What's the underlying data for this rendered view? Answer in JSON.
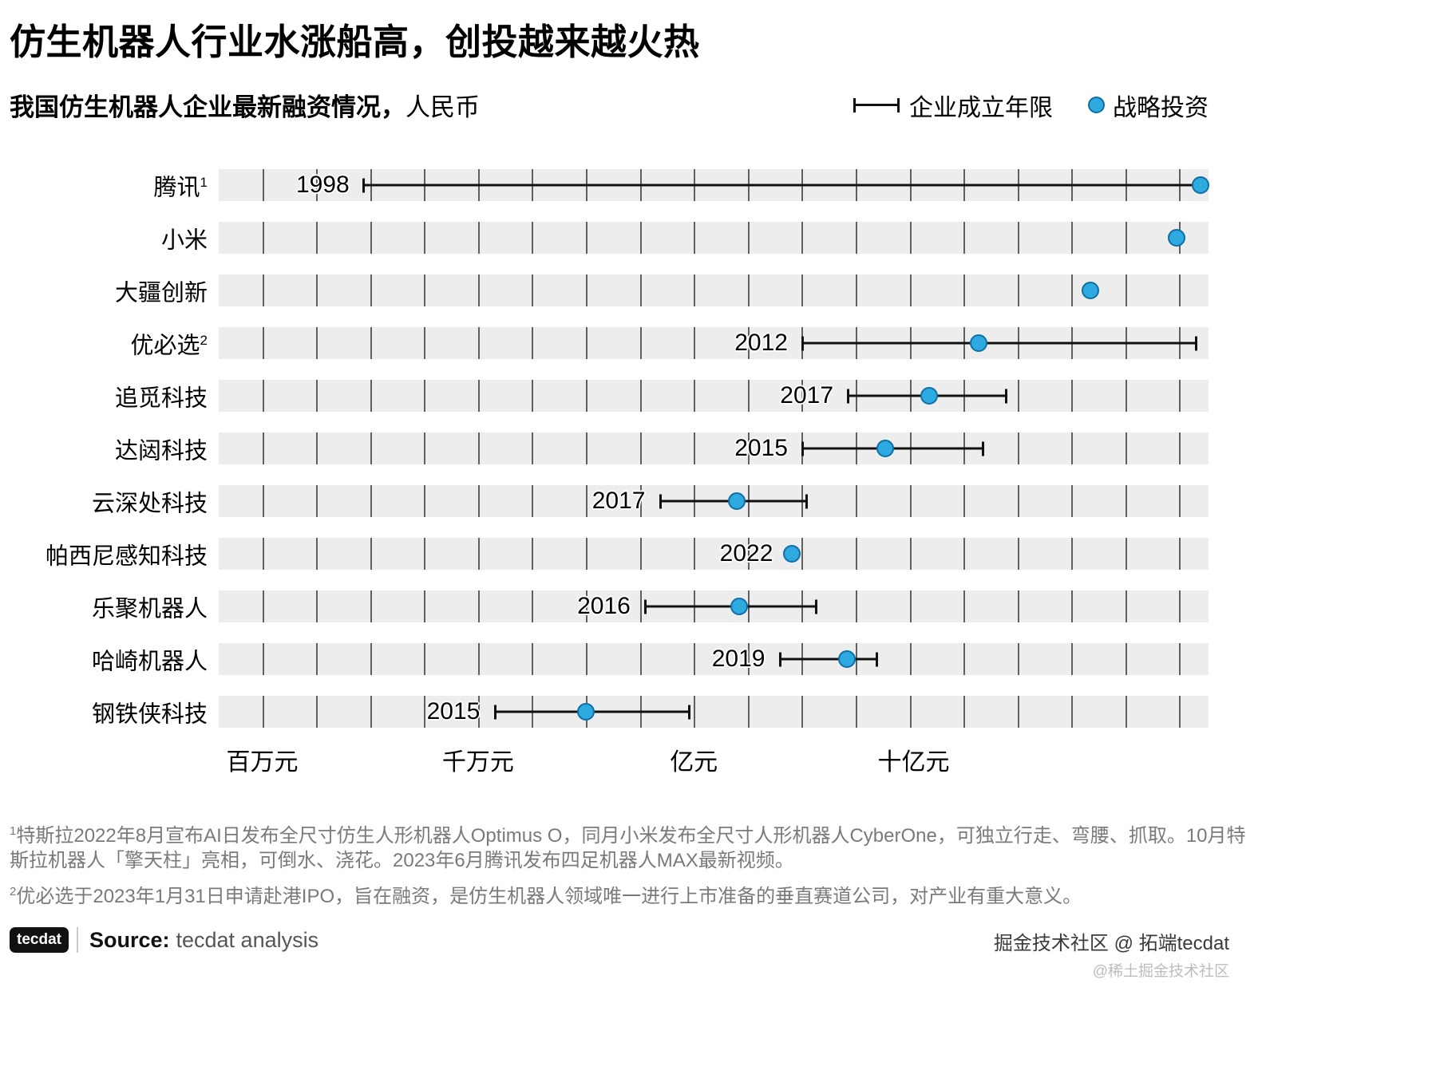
{
  "header": {
    "title": "仿生机器人行业水涨船高，创投越来越火热",
    "subtitle_bold": "我国仿生机器人企业最新融资情况，",
    "subtitle_light": "人民币",
    "legend": {
      "line_label": "企业成立年限",
      "dot_label": "战略投资"
    }
  },
  "chart_data": {
    "type": "dumbbell",
    "title": "仿生机器人行业水涨船高，创投越来越火热",
    "subtitle": "我国仿生机器人企业最新融资情况，人民币",
    "x_scale": "log10, 人民币元",
    "x_ticks": [
      {
        "label": "百万元",
        "pct": 4.4
      },
      {
        "label": "千万元",
        "pct": 26.2
      },
      {
        "label": "亿元",
        "pct": 48.0
      },
      {
        "label": "十亿元",
        "pct": 70.2
      }
    ],
    "gridlines_pct": [
      4.4,
      9.85,
      15.3,
      20.75,
      26.2,
      31.65,
      37.1,
      42.55,
      48.0,
      53.45,
      58.9,
      64.35,
      69.8,
      75.25,
      80.7,
      86.15,
      91.6,
      97.05
    ],
    "rows": [
      {
        "company": "腾讯",
        "footnote_mark": "1",
        "year": "1998",
        "line_left_pct": 14.5,
        "line_width_pct": 84.5,
        "year_right_pct": 86.8,
        "dot_pct": 99.2,
        "amount_est_yuan": 22000000000
      },
      {
        "company": "小米",
        "footnote_mark": "",
        "year": "",
        "line_left_pct": null,
        "line_width_pct": null,
        "year_right_pct": null,
        "dot_pct": 96.8,
        "amount_est_yuan": 17000000000
      },
      {
        "company": "大疆创新",
        "footnote_mark": "",
        "year": "",
        "line_left_pct": null,
        "line_width_pct": null,
        "year_right_pct": null,
        "dot_pct": 88.1,
        "amount_est_yuan": 7000000000
      },
      {
        "company": "优必选",
        "footnote_mark": "2",
        "year": "2012",
        "line_left_pct": 58.9,
        "line_width_pct": 40.0,
        "year_right_pct": 42.5,
        "dot_pct": 76.8,
        "amount_est_yuan": 2100000000
      },
      {
        "company": "追觅科技",
        "footnote_mark": "",
        "year": "2017",
        "line_left_pct": 63.5,
        "line_width_pct": 16.2,
        "year_right_pct": 37.9,
        "dot_pct": 71.8,
        "amount_est_yuan": 1200000000
      },
      {
        "company": "达闼科技",
        "footnote_mark": "",
        "year": "2015",
        "line_left_pct": 58.9,
        "line_width_pct": 18.4,
        "year_right_pct": 42.5,
        "dot_pct": 67.3,
        "amount_est_yuan": 780000000
      },
      {
        "company": "云深处科技",
        "footnote_mark": "",
        "year": "2017",
        "line_left_pct": 44.5,
        "line_width_pct": 15.0,
        "year_right_pct": 56.9,
        "dot_pct": 52.3,
        "amount_est_yuan": 160000000
      },
      {
        "company": "帕西尼感知科技",
        "footnote_mark": "",
        "year": "2022",
        "line_left_pct": null,
        "line_width_pct": null,
        "year_right_pct": 44.0,
        "dot_pct": 57.9,
        "amount_est_yuan": 280000000
      },
      {
        "company": "乐聚机器人",
        "footnote_mark": "",
        "year": "2016",
        "line_left_pct": 43.0,
        "line_width_pct": 17.5,
        "year_right_pct": 58.4,
        "dot_pct": 52.6,
        "amount_est_yuan": 160000000
      },
      {
        "company": "哈崎机器人",
        "footnote_mark": "",
        "year": "2019",
        "line_left_pct": 56.6,
        "line_width_pct": 10.0,
        "year_right_pct": 44.8,
        "dot_pct": 63.5,
        "amount_est_yuan": 510000000
      },
      {
        "company": "钢铁侠科技",
        "footnote_mark": "",
        "year": "2015",
        "line_left_pct": 27.8,
        "line_width_pct": 19.9,
        "year_right_pct": 73.6,
        "dot_pct": 37.1,
        "amount_est_yuan": 32000000
      }
    ]
  },
  "footnotes": [
    {
      "mark": "1",
      "text": "特斯拉2022年8月宣布AI日发布全尺寸仿生人形机器人Optimus O，同月小米发布全尺寸人形机器人CyberOne，可独立行走、弯腰、抓取。10月特斯拉机器人「擎天柱」亮相，可倒水、浇花。2023年6月腾讯发布四足机器人MAX最新视频。"
    },
    {
      "mark": "2",
      "text": "优必选于2023年1月31日申请赴港IPO，旨在融资，是仿生机器人领域唯一进行上市准备的垂直赛道公司，对产业有重大意义。"
    }
  ],
  "footer": {
    "logo_text": "tecdat",
    "source_label": "Source:",
    "source_text": "tecdat analysis",
    "watermark_line1": "掘金技术社区 @ 拓端tecdat",
    "watermark_line2": "@稀土掘金技术社区"
  },
  "colors": {
    "dot_fill": "#2FAAE1",
    "dot_border": "#0E6FA5",
    "band": "#EDEDED",
    "line": "#111111",
    "footnote_text": "#7a7a7a"
  }
}
